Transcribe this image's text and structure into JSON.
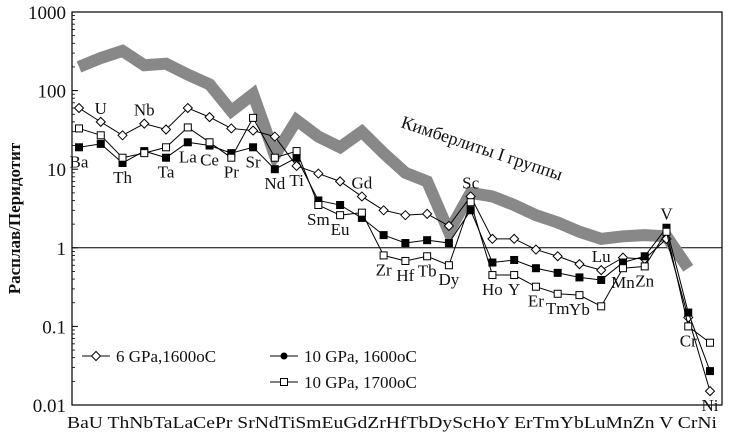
{
  "chart_data": {
    "type": "line",
    "title": "",
    "xlabel": "",
    "ylabel": "Расплав/Перидотит",
    "y_scale": "log",
    "ylim": [
      0.01,
      1000
    ],
    "y_ticks": [
      "1000",
      "100",
      "10",
      "1",
      "0.1",
      "0.01"
    ],
    "reference_line": 1,
    "categories": [
      "Ba",
      "U",
      "Th",
      "Nb",
      "Ta",
      "La",
      "Ce",
      "Pr",
      "Sr",
      "Nd",
      "Ti",
      "Sm",
      "Eu",
      "Gd",
      "Zr",
      "Hf",
      "Tb",
      "Dy",
      "Sc",
      "Ho",
      "Y",
      "Er",
      "Tm",
      "Yb",
      "Lu",
      "Mn",
      "Zn",
      "V",
      "Cr",
      "Ni"
    ],
    "series": [
      {
        "name": "6 GPa,1600oC",
        "marker": "diamond-open",
        "values": [
          60,
          40,
          27,
          38,
          32,
          60,
          46,
          33,
          31,
          26,
          11,
          8.8,
          7,
          4.5,
          3,
          2.6,
          2.7,
          1.9,
          4.5,
          1.3,
          1.3,
          0.95,
          0.78,
          0.62,
          0.52,
          0.75,
          0.72,
          1.3,
          0.13,
          0.015
        ]
      },
      {
        "name": "10 GPa, 1600oC",
        "marker": "square-filled",
        "values": [
          19,
          21,
          12,
          17,
          14,
          22,
          20,
          16,
          19,
          10,
          14,
          4,
          3.5,
          2.4,
          1.45,
          1.15,
          1.25,
          1.15,
          3.0,
          0.65,
          0.7,
          0.55,
          0.48,
          0.42,
          0.39,
          0.65,
          0.78,
          1.8,
          0.15,
          0.027
        ]
      },
      {
        "name": "10 GPa, 1700oC",
        "marker": "square-open",
        "values": [
          33,
          27,
          14,
          16,
          19,
          34,
          22,
          14,
          45,
          14,
          17,
          3.5,
          2.6,
          2.8,
          0.8,
          0.68,
          0.78,
          0.6,
          3.8,
          0.45,
          0.45,
          0.32,
          0.26,
          0.25,
          0.18,
          0.55,
          0.58,
          1.6,
          0.1,
          0.062
        ]
      }
    ],
    "band": {
      "name": "Кимберлиты I группы",
      "color": "#888888",
      "values": [
        200,
        260,
        320,
        210,
        220,
        160,
        120,
        55,
        90,
        15,
        42,
        26,
        19,
        30,
        16,
        9,
        7,
        1.6,
        5,
        4.5,
        3.5,
        2.6,
        2.1,
        1.6,
        1.3,
        1.4,
        1.45,
        1.4,
        0.55,
        null
      ]
    },
    "category_labels": {
      "above": [
        "U",
        "Nb",
        "Gd",
        "Sc",
        "Lu",
        "V"
      ],
      "below": [
        "Ba",
        "Th",
        "Ta",
        "La",
        "Ce",
        "Pr",
        "Sr",
        "Nd",
        "Ti",
        "Sm",
        "Eu",
        "Zr",
        "Hf",
        "Tb",
        "Dy",
        "Ho",
        "Y",
        "Er",
        "Tm",
        "Yb",
        "Mn",
        "Zn",
        "Cr",
        "Ni"
      ]
    },
    "legend": {
      "placement": "bottom-left",
      "entries": [
        "6 GPa,1600oC",
        "10 GPa, 1600oC",
        "10 GPa, 1700oC"
      ]
    },
    "x_axis_label_text": "BaU ThNbTaLaCePr SrNdTiSmEuGdZrHfTbDyScHoY ErTmYbLuMnZn V CrNi"
  }
}
